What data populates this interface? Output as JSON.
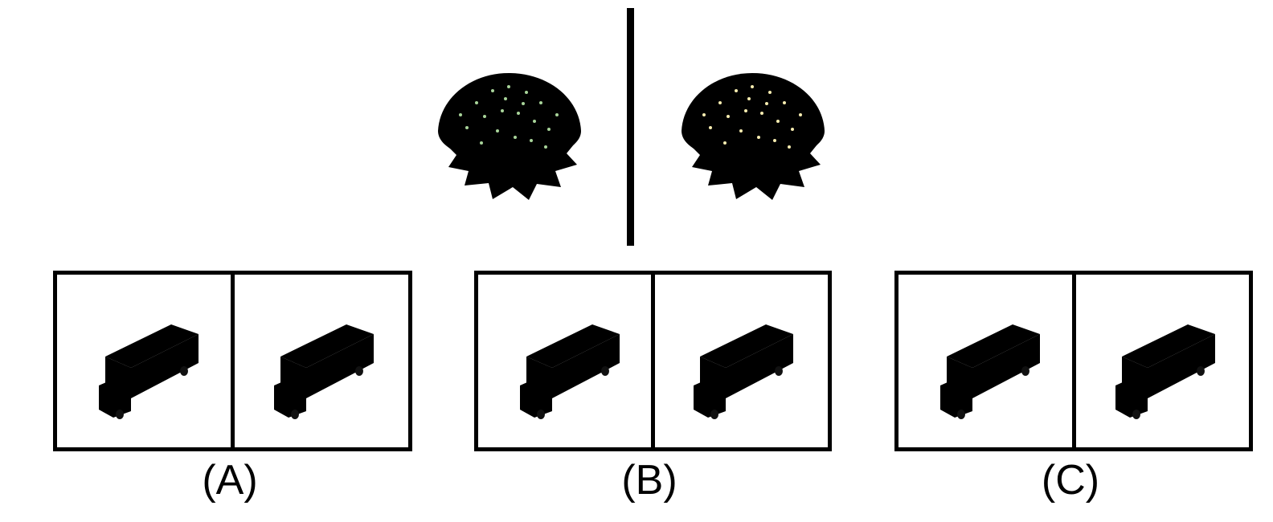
{
  "reference": {
    "left_item": {
      "icon": "burger-icon",
      "color": "#4f9a1e"
    },
    "right_item": {
      "icon": "burger-icon",
      "color": "#e6c21c"
    }
  },
  "options": [
    {
      "label": "(A)",
      "left_bus": {
        "icon": "bus-icon",
        "color": "#5b4fc2"
      },
      "right_bus": {
        "icon": "bus-icon",
        "color": "#5b4fc2"
      }
    },
    {
      "label": "(B)",
      "left_bus": {
        "icon": "bus-icon",
        "color": "#5b4fc2"
      },
      "right_bus": {
        "icon": "bus-icon",
        "color": "#e8d21a"
      }
    },
    {
      "label": "(C)",
      "left_bus": {
        "icon": "bus-icon",
        "color": "#5b4fc2"
      },
      "right_bus": {
        "icon": "bus-icon",
        "color": "#9c9c9c"
      }
    }
  ]
}
